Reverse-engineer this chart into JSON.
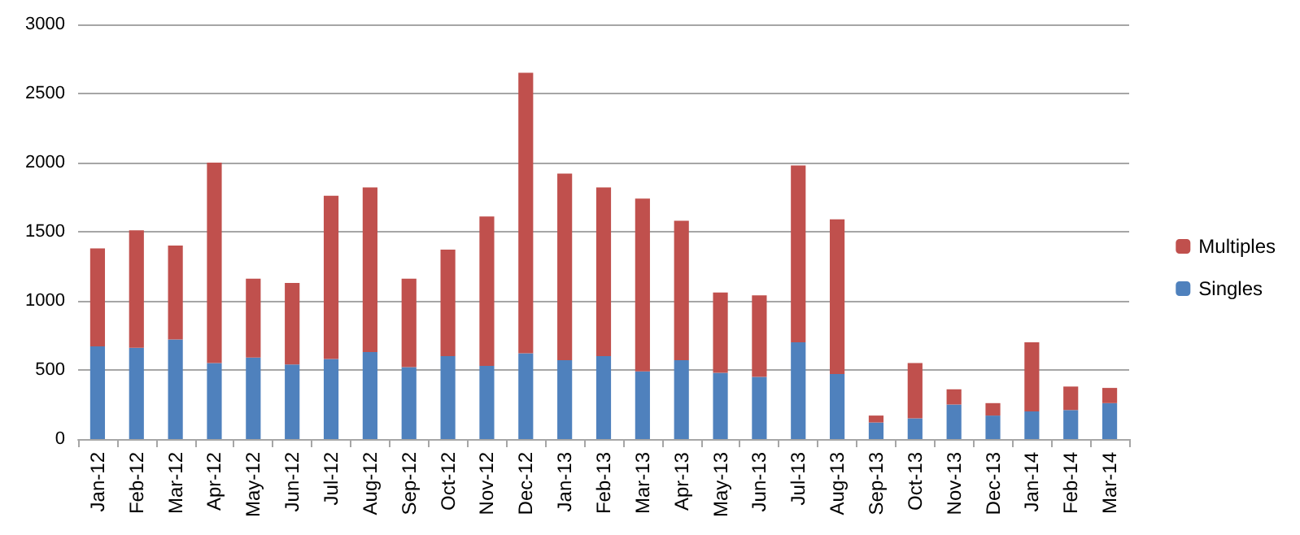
{
  "chart_data": {
    "type": "bar",
    "stacked": true,
    "categories": [
      "Jan-12",
      "Feb-12",
      "Mar-12",
      "Apr-12",
      "May-12",
      "Jun-12",
      "Jul-12",
      "Aug-12",
      "Sep-12",
      "Oct-12",
      "Nov-12",
      "Dec-12",
      "Jan-13",
      "Feb-13",
      "Mar-13",
      "Apr-13",
      "May-13",
      "Jun-13",
      "Jul-13",
      "Aug-13",
      "Sep-13",
      "Oct-13",
      "Nov-13",
      "Dec-13",
      "Jan-14",
      "Feb-14",
      "Mar-14"
    ],
    "series": [
      {
        "name": "Singles",
        "color": "#4f81bd",
        "values": [
          670,
          660,
          720,
          550,
          590,
          540,
          580,
          630,
          520,
          600,
          530,
          620,
          570,
          600,
          490,
          570,
          480,
          450,
          700,
          470,
          120,
          150,
          250,
          170,
          200,
          210,
          260
        ]
      },
      {
        "name": "Multiples",
        "color": "#c0504d",
        "values": [
          710,
          850,
          680,
          1450,
          570,
          590,
          1180,
          1190,
          640,
          770,
          1080,
          2030,
          1350,
          1220,
          1250,
          1010,
          580,
          590,
          1280,
          1120,
          50,
          400,
          110,
          90,
          500,
          170,
          110
        ]
      }
    ],
    "ylim": [
      0,
      3000
    ],
    "yticks": [
      0,
      500,
      1000,
      1500,
      2000,
      2500,
      3000
    ],
    "grid": "y",
    "legend": "right"
  }
}
